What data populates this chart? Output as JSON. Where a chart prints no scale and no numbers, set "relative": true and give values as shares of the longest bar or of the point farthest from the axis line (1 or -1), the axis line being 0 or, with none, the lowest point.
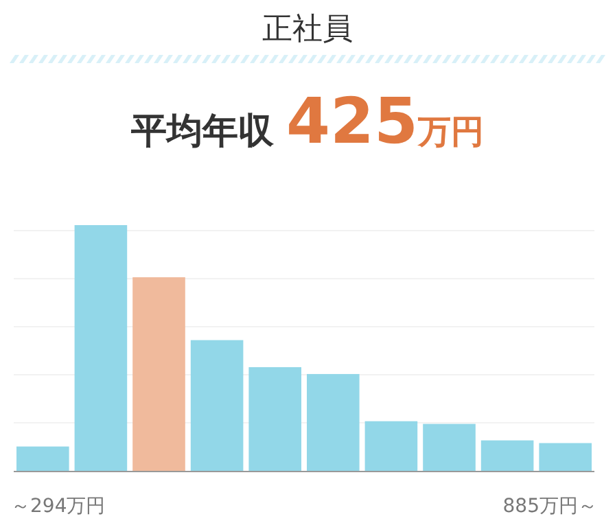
{
  "chart_data": {
    "type": "bar",
    "title": "正社員",
    "subtitle": "平均年収 425万円",
    "relative": true,
    "grid": "y",
    "categories": [
      "～294万円",
      null,
      null,
      null,
      null,
      null,
      null,
      null,
      null,
      "885万円～"
    ],
    "values": [
      0.099,
      1,
      0.788,
      0.532,
      0.422,
      0.394,
      0.202,
      0.191,
      0.124,
      0.113
    ],
    "colors": [
      "#92d7e8",
      "#92d7e8",
      "#f0ba9c",
      "#92d7e8",
      "#92d7e8",
      "#92d7e8",
      "#92d7e8",
      "#92d7e8",
      "#92d7e8",
      "#92d7e8"
    ]
  }
}
